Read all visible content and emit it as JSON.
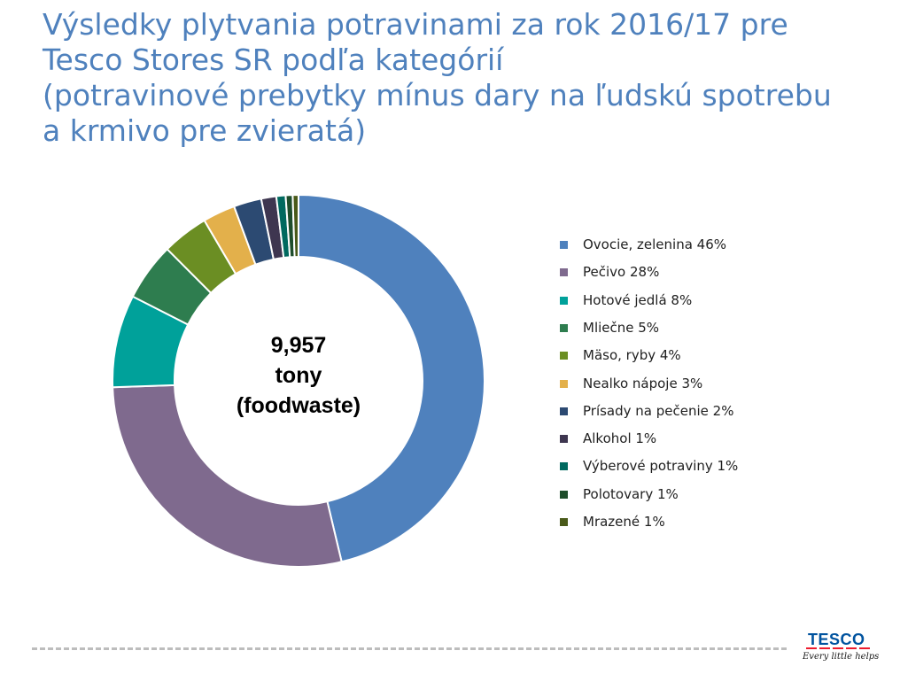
{
  "slide": {
    "title_lines": [
      "Výsledky plytvania potravinami za rok 2016/17 pre",
      "Tesco Stores SR podľa kategórií",
      "(potravinové prebytky mínus dary na ľudskú spotrebu",
      "a krmivo pre zvieratá)"
    ],
    "center_label": {
      "line1": "9,957",
      "line2": "tony",
      "line3": "(foodwaste)"
    },
    "logo": {
      "word": "TESCO",
      "tagline": "Every little helps"
    }
  },
  "chart_data": {
    "type": "pie",
    "variant": "donut",
    "unit": "%",
    "legend_position": "right",
    "slices": [
      {
        "label": "Ovocie, zelenina 46%",
        "value": 46,
        "color": "#4f81bd"
      },
      {
        "label": "Pečivo 28%",
        "value": 28,
        "color": "#7f6a8e"
      },
      {
        "label": "Hotové jedlá 8%",
        "value": 8,
        "color": "#00a19a"
      },
      {
        "label": "Mliečne 5%",
        "value": 5,
        "color": "#2e7d4f"
      },
      {
        "label": "Mäso, ryby 4%",
        "value": 4,
        "color": "#6b8e23"
      },
      {
        "label": "Nealko nápoje 3%",
        "value": 2.8,
        "color": "#e3b04b"
      },
      {
        "label": "Prísady na pečenie 2%",
        "value": 2.4,
        "color": "#2c4a72"
      },
      {
        "label": "Alkohol 1%",
        "value": 1.3,
        "color": "#3e3650"
      },
      {
        "label": "Výberové potraviny 1%",
        "value": 0.8,
        "color": "#00695f"
      },
      {
        "label": "Polotovary 1%",
        "value": 0.6,
        "color": "#1e4d2b"
      },
      {
        "label": "Mrazené 1%",
        "value": 0.5,
        "color": "#4a5a1a"
      }
    ]
  }
}
